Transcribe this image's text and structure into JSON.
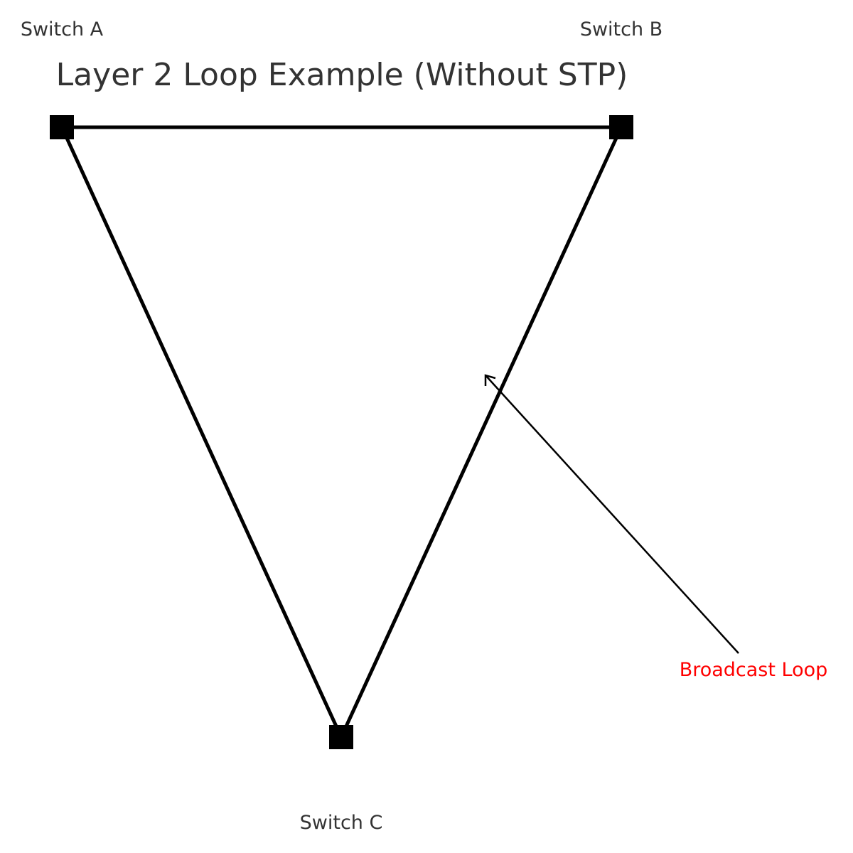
{
  "diagram": {
    "title": "Layer 2 Loop Example (Without STP)",
    "nodes": [
      {
        "id": "a",
        "label": "Switch A"
      },
      {
        "id": "b",
        "label": "Switch B"
      },
      {
        "id": "c",
        "label": "Switch C"
      }
    ],
    "links": [
      {
        "from": "a",
        "to": "b"
      },
      {
        "from": "a",
        "to": "c"
      },
      {
        "from": "b",
        "to": "c"
      }
    ],
    "annotation": {
      "text": "Broadcast Loop",
      "color": "#ff0000"
    },
    "node_color": "#000000",
    "link_color": "#000000",
    "text_color": "#333333"
  }
}
